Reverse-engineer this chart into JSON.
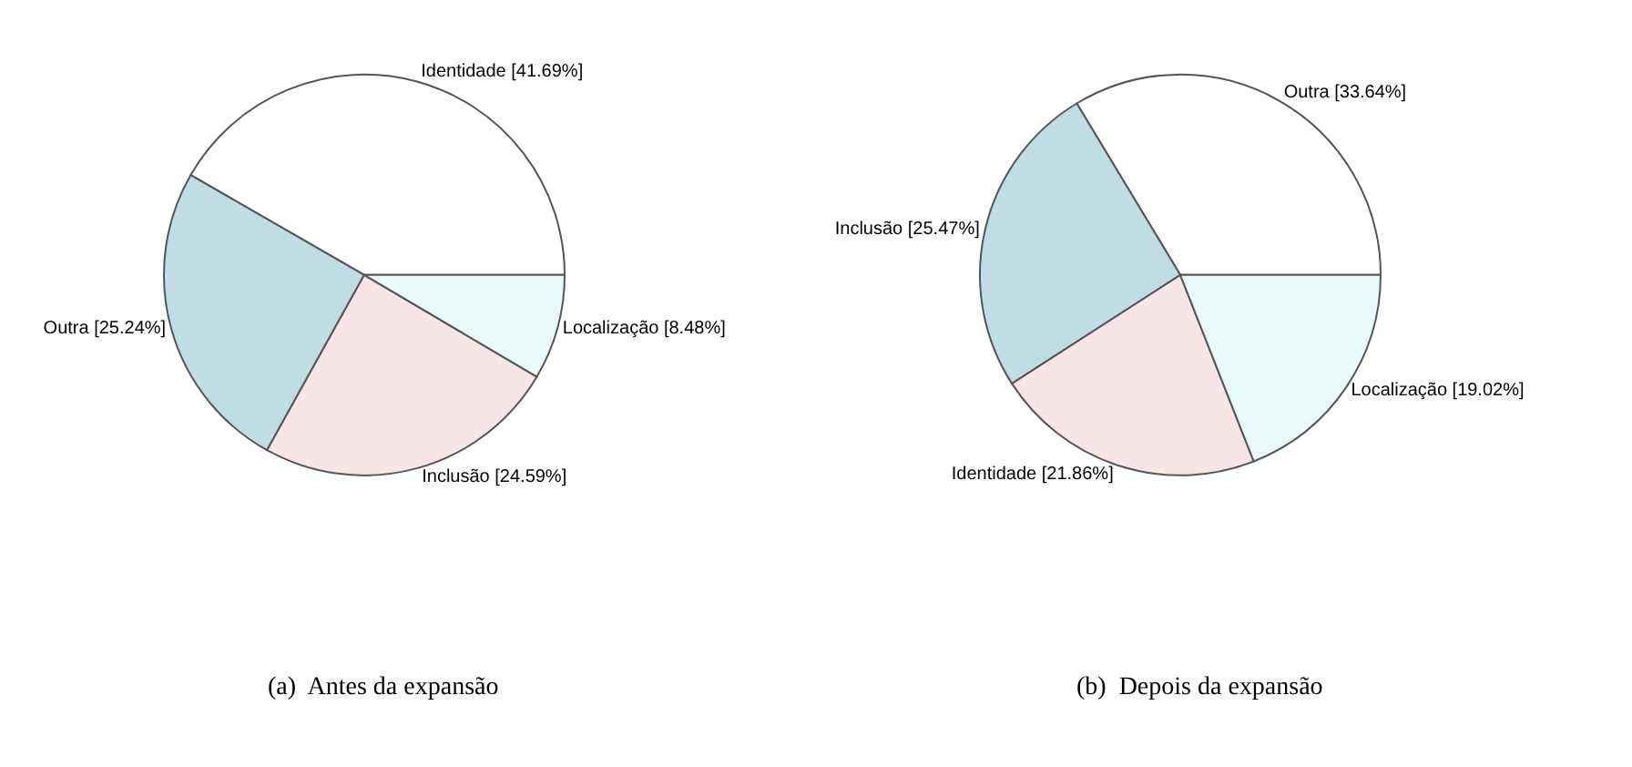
{
  "chart_data": [
    {
      "type": "pie",
      "title": "(a)  Antes da expansão",
      "categories": [
        "Identidade",
        "Outra",
        "Inclusão",
        "Localização"
      ],
      "values": [
        41.69,
        25.24,
        24.59,
        8.48
      ],
      "value_labels": [
        "[41.69%]",
        "[25.24%]",
        "[24.59%]",
        "[8.48%]"
      ],
      "colors": [
        "#ffffff",
        "#c0dde6",
        "#fae5e6",
        "#e8fafa"
      ]
    },
    {
      "type": "pie",
      "title": "(b)  Depois da expansão",
      "categories": [
        "Outra",
        "Inclusão",
        "Identidade",
        "Localização"
      ],
      "values": [
        33.64,
        25.47,
        21.86,
        19.02
      ],
      "value_labels": [
        "[33.64%]",
        "[25.47%]",
        "[21.86%]",
        "[19.02%]"
      ],
      "colors": [
        "#ffffff",
        "#c0dde6",
        "#fae5e6",
        "#e8fafa"
      ]
    }
  ]
}
